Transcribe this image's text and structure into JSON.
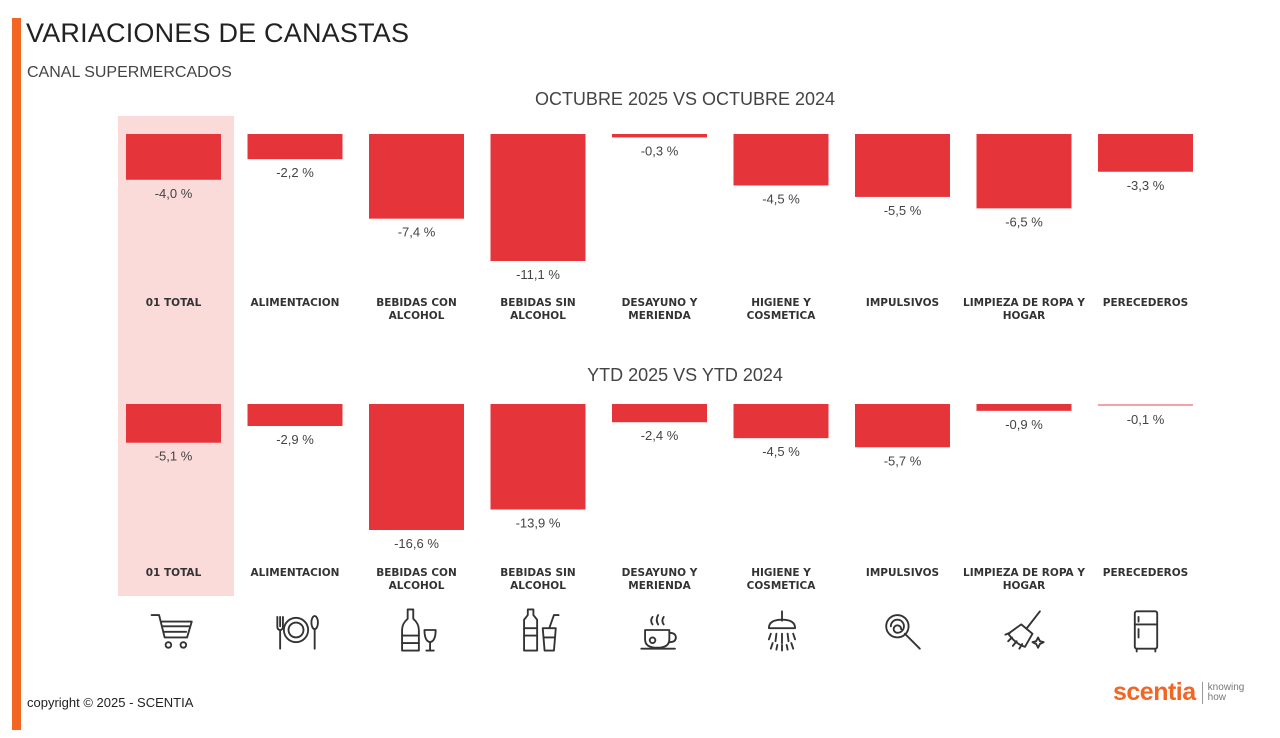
{
  "header": {
    "title": "VARIACIONES DE CANASTAS",
    "subtitle": "CANAL SUPERMERCADOS"
  },
  "colors": {
    "accent": "#f26522",
    "bar": "#e5343a",
    "highlight": "#fbdada"
  },
  "chart_data": [
    {
      "type": "bar",
      "title": "OCTUBRE 2025 VS OCTUBRE 2024",
      "categories": [
        "01 TOTAL",
        "ALIMENTACION",
        "BEBIDAS CON ALCOHOL",
        "BEBIDAS SIN ALCOHOL",
        "DESAYUNO Y MERIENDA",
        "HIGIENE Y COSMETICA",
        "IMPULSIVOS",
        "LIMPIEZA DE ROPA Y HOGAR",
        "PERECEDEROS"
      ],
      "values": [
        -4.0,
        -2.2,
        -7.4,
        -11.1,
        -0.3,
        -4.5,
        -5.5,
        -6.5,
        -3.3
      ],
      "value_labels": [
        "-4,0 %",
        "-2,2 %",
        "-7,4 %",
        "-11,1 %",
        "-0,3 %",
        "-4,5 %",
        "-5,5 %",
        "-6,5 %",
        "-3,3 %"
      ],
      "ylim": [
        -11.1,
        0
      ],
      "grid": false,
      "legend": "none"
    },
    {
      "type": "bar",
      "title": "YTD 2025 VS YTD 2024",
      "categories": [
        "01 TOTAL",
        "ALIMENTACION",
        "BEBIDAS CON ALCOHOL",
        "BEBIDAS SIN ALCOHOL",
        "DESAYUNO Y MERIENDA",
        "HIGIENE Y COSMETICA",
        "IMPULSIVOS",
        "LIMPIEZA DE ROPA Y HOGAR",
        "PERECEDEROS"
      ],
      "values": [
        -5.1,
        -2.9,
        -16.6,
        -13.9,
        -2.4,
        -4.5,
        -5.7,
        -0.9,
        -0.1
      ],
      "value_labels": [
        "-5,1 %",
        "-2,9 %",
        "-16,6 %",
        "-13,9 %",
        "-2,4 %",
        "-4,5 %",
        "-5,7 %",
        "-0,9 %",
        "-0,1 %"
      ],
      "ylim": [
        -16.6,
        0
      ],
      "grid": false,
      "legend": "none"
    }
  ],
  "category_labels": [
    [
      "01 TOTAL"
    ],
    [
      "ALIMENTACION"
    ],
    [
      "BEBIDAS CON",
      "ALCOHOL"
    ],
    [
      "BEBIDAS SIN",
      "ALCOHOL"
    ],
    [
      "DESAYUNO Y",
      "MERIENDA"
    ],
    [
      "HIGIENE Y",
      "COSMETICA"
    ],
    [
      "IMPULSIVOS"
    ],
    [
      "LIMPIEZA DE ROPA Y",
      "HOGAR"
    ],
    [
      "PERECEDEROS"
    ]
  ],
  "icons": [
    "shopping-cart-icon",
    "plate-cutlery-icon",
    "wine-bottle-glass-icon",
    "water-bottle-cup-icon",
    "coffee-cup-icon",
    "shower-icon",
    "lollipop-icon",
    "broom-icon",
    "fridge-icon"
  ],
  "footer": {
    "copyright": "copyright © 2025 - SCENTIA",
    "logo_word": "scentia",
    "logo_tag_1": "knowing",
    "logo_tag_2": "how"
  }
}
